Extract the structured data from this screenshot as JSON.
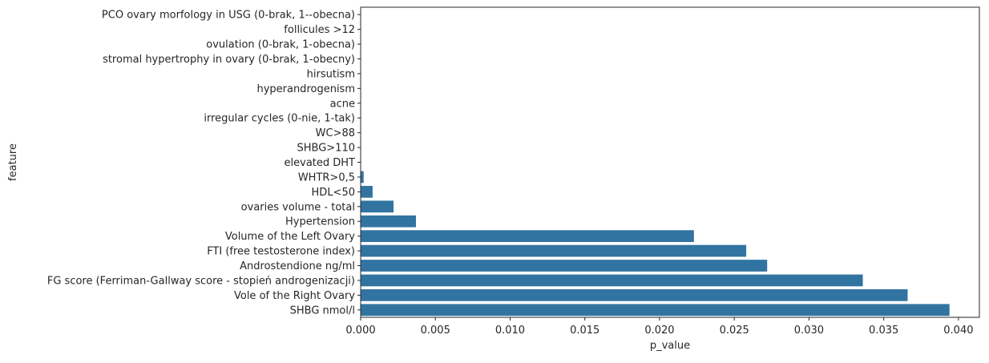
{
  "chart_data": {
    "type": "bar",
    "orientation": "horizontal",
    "xlabel": "p_value",
    "ylabel": "feature",
    "xlim": [
      0,
      0.0414
    ],
    "xticks": [
      "0.000",
      "0.005",
      "0.010",
      "0.015",
      "0.020",
      "0.025",
      "0.030",
      "0.035",
      "0.040"
    ],
    "xtick_values": [
      0,
      0.005,
      0.01,
      0.015,
      0.02,
      0.025,
      0.03,
      0.035,
      0.04
    ],
    "grid": false,
    "bar_color": "#3274a1",
    "categories": [
      "PCO ovary morfology in USG (0-brak, 1--obecna)",
      "follicules >12",
      "ovulation (0-brak, 1-obecna)",
      "stromal hypertrophy in ovary (0-brak, 1-obecny)",
      "hirsutism",
      "hyperandrogenism",
      "acne",
      "irregular cycles (0-nie, 1-tak)",
      "WC>88",
      "SHBG>110",
      "elevated DHT",
      "WHTR>0,5",
      "HDL<50",
      "ovaries volume - total",
      "Hypertension",
      "Volume of the  Left Ovary",
      "FTI (free testosterone index)",
      "Androstendione ng/ml",
      "FG score (Ferriman-Gallway score - stopień androgenizacji)",
      "Vole of the Right Ovary",
      "SHBG nmol/l"
    ],
    "values": [
      0,
      0,
      0,
      0,
      0,
      0,
      0,
      0,
      0,
      0,
      0,
      0.0002,
      0.0008,
      0.0022,
      0.0037,
      0.0223,
      0.0258,
      0.0272,
      0.0336,
      0.0366,
      0.0394
    ]
  }
}
